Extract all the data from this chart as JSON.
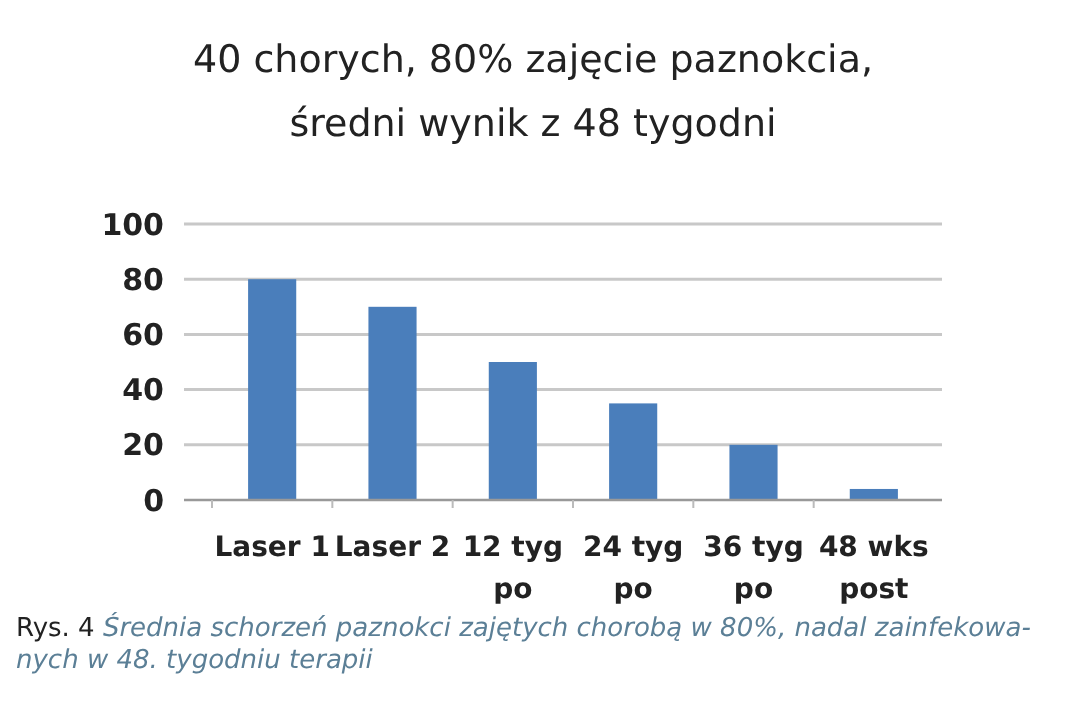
{
  "chart_data": {
    "type": "bar",
    "title": "40 chorych, 80% zajęcie paznokcia,\nśredni wynik z 48 tygodni",
    "categories": [
      "Laser 1",
      "Laser 2",
      "12 tyg po",
      "24 tyg po",
      "36 tyg po",
      "48 wks post"
    ],
    "values": [
      80,
      70,
      50,
      35,
      20,
      4
    ],
    "color": "#4a7ebb",
    "ylim": [
      0,
      100
    ],
    "yticks": [
      0,
      20,
      40,
      60,
      80,
      100
    ],
    "grid": "y",
    "annotations": [
      "Rys. 4",
      "Średnia schorzeń paznokci zajętych chorobą w 80%, nadal zainfekowa-nych w 48. tygodniu terapii"
    ]
  }
}
